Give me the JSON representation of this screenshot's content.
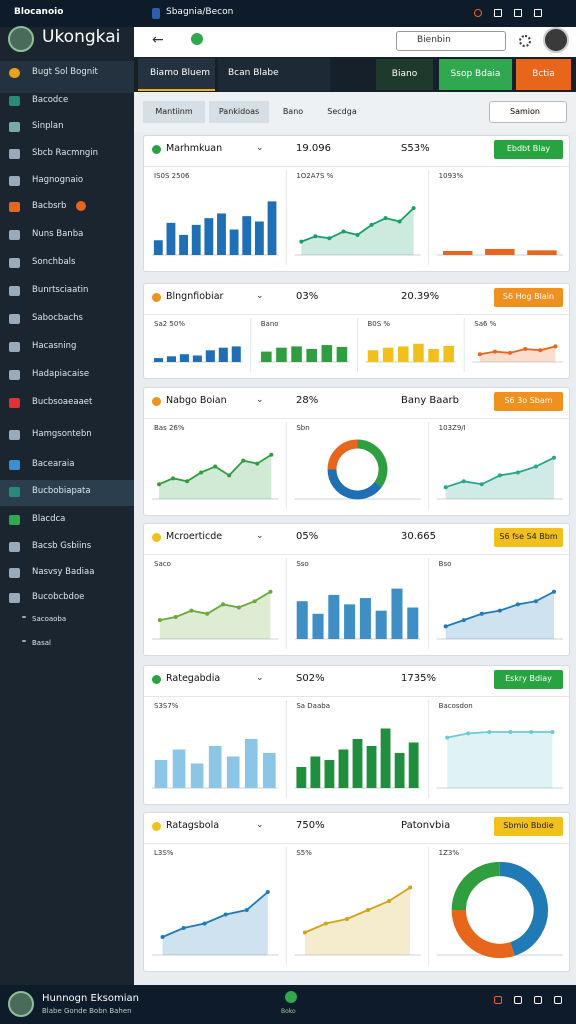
{
  "topbar": {
    "app": "Blocanoio",
    "tab": "Sbagnia/Becon"
  },
  "brand": "Ukongkai",
  "search": "Bienbin",
  "nav": [
    "Biamo Bluem",
    "Bcan Blabe"
  ],
  "tabs": [
    {
      "label": "Biano",
      "color": "#1e3a2c"
    },
    {
      "label": "Ssop Bdaia",
      "color": "#2fa84f"
    },
    {
      "label": "Bctia",
      "color": "#e8661c"
    }
  ],
  "filters": [
    "Mantiinm",
    "Pankidoas",
    "Bano",
    "Secdga"
  ],
  "sort": "Samion",
  "sidebar": {
    "highlighted": 15,
    "items": [
      "Bugt Sol Bognit",
      "Bacodce",
      "Sinplan",
      "Sbcb Racmngin",
      "Hagnognaio",
      "Bacbsrb",
      "Nuns Banba",
      "Sonchbals",
      "Bunrtsciaatin",
      "Sabocbachs",
      "Hacasning",
      "Hadapiacaise",
      "Bucbsoaeaaet",
      "Hamgsontebn",
      "Bacearaia",
      "Bucbobiapata",
      "Blacdca",
      "Bacsb Gsbiins",
      "Nasvsy Badiaa",
      "Bucobcbdoe",
      "Sacoaoba",
      "Basal"
    ]
  },
  "panels": [
    {
      "title": "Marhmkuan",
      "value1": "19.096",
      "value2": "S53%",
      "button": "Ebdbt Blay",
      "color": "#27a33f",
      "charts": [
        {
          "type": "bar",
          "caption": "IS0S 2506",
          "color": "#1f6fb5",
          "ylim": [
            0,
            100
          ],
          "values": [
            22,
            48,
            30,
            45,
            55,
            62,
            38,
            58,
            50,
            80
          ]
        },
        {
          "type": "area",
          "caption": "1O2A7S %",
          "color": "#1a9e6a",
          "ylim": [
            0,
            100
          ],
          "values": [
            20,
            28,
            25,
            35,
            30,
            45,
            55,
            50,
            70
          ]
        },
        {
          "type": "bar",
          "caption": "1093%",
          "color": "#e8661c",
          "ylim": [
            0,
            100
          ],
          "values": [
            6,
            9,
            7
          ]
        }
      ]
    },
    {
      "title": "Blngnfiobiar",
      "value1": "03%",
      "value2": "20.39%",
      "button": "S6 Hog Blain",
      "color": "#f0901e",
      "charts": [
        {
          "type": "bar",
          "caption": "Sa2 50%",
          "color": "#1f6fb5",
          "ylim": [
            0,
            100
          ],
          "values": [
            15,
            22,
            30,
            25,
            45,
            55,
            60
          ]
        },
        {
          "type": "bar",
          "caption": "Bano",
          "color": "#2e9e3e",
          "ylim": [
            0,
            100
          ],
          "values": [
            40,
            55,
            60,
            50,
            65,
            58
          ]
        },
        {
          "type": "bar",
          "caption": "B0S %",
          "color": "#f2c01c",
          "ylim": [
            0,
            100
          ],
          "values": [
            45,
            55,
            60,
            70,
            50,
            62
          ]
        },
        {
          "type": "area",
          "caption": "Sa6 %",
          "color": "#e8661c",
          "ylim": [
            0,
            100
          ],
          "values": [
            30,
            40,
            35,
            50,
            45,
            60
          ]
        }
      ]
    },
    {
      "title": "Nabgo Boian",
      "value1": "28%",
      "value2": "Bany Baarb",
      "button": "S6 3o Sbam",
      "color": "#f0901e",
      "charts": [
        {
          "type": "area",
          "caption": "Bas 26%",
          "color": "#2e9e3e",
          "ylim": [
            0,
            100
          ],
          "values": [
            25,
            35,
            30,
            45,
            55,
            40,
            65,
            60,
            75
          ]
        },
        {
          "type": "donut",
          "caption": "Sbn",
          "colors": [
            "#2e9e3e",
            "#1f6fb5",
            "#e8661c"
          ],
          "values": [
            35,
            40,
            25
          ]
        },
        {
          "type": "area",
          "caption": "103Z9/I",
          "color": "#2aa58e",
          "ylim": [
            0,
            100
          ],
          "values": [
            20,
            30,
            25,
            40,
            45,
            55,
            70
          ]
        }
      ]
    },
    {
      "title": "Mcroerticde",
      "value1": "05%",
      "value2": "30.665",
      "button": "S6 fse S4 Bbm",
      "color": "#f2c01c",
      "charts": [
        {
          "type": "area",
          "caption": "Saco",
          "color": "#6aa83a",
          "ylim": [
            0,
            100
          ],
          "values": [
            30,
            35,
            45,
            40,
            55,
            50,
            60,
            75
          ]
        },
        {
          "type": "bar",
          "caption": "Sso",
          "color": "#3f8fc4",
          "ylim": [
            0,
            100
          ],
          "values": [
            60,
            40,
            70,
            55,
            65,
            45,
            80,
            50
          ]
        },
        {
          "type": "area",
          "caption": "Bso",
          "color": "#1f7ab5",
          "ylim": [
            0,
            100
          ],
          "values": [
            20,
            30,
            40,
            45,
            55,
            60,
            75
          ]
        }
      ]
    },
    {
      "title": "Rategabdia",
      "value1": "S02%",
      "value2": "1735%",
      "button": "Eskry Bdiay",
      "color": "#27a33f",
      "charts": [
        {
          "type": "bar",
          "caption": "S3S7%",
          "color": "#8cc6e6",
          "ylim": [
            0,
            100
          ],
          "values": [
            40,
            55,
            35,
            60,
            45,
            70,
            50
          ]
        },
        {
          "type": "bar",
          "caption": "Sa Daaba",
          "color": "#1f8f3e",
          "ylim": [
            0,
            100
          ],
          "values": [
            30,
            45,
            40,
            55,
            70,
            60,
            85,
            50,
            65
          ]
        },
        {
          "type": "area",
          "caption": "Bacosdon",
          "color": "#6ec9d9",
          "ylim": [
            0,
            100
          ],
          "values": [
            72,
            78,
            80,
            80,
            80,
            80
          ]
        }
      ]
    },
    {
      "title": "Ratagsbola",
      "value1": "750%",
      "value2": "Patonvbia",
      "button": "Sbmio Bbdie",
      "color": "#f2c01c",
      "charts": [
        {
          "type": "area",
          "caption": "L3S%",
          "color": "#1f7ab5",
          "ylim": [
            0,
            100
          ],
          "values": [
            20,
            30,
            35,
            45,
            50,
            70
          ]
        },
        {
          "type": "area",
          "caption": "S5%",
          "color": "#d1a21a",
          "ylim": [
            0,
            100
          ],
          "values": [
            25,
            35,
            40,
            50,
            60,
            75
          ]
        },
        {
          "type": "donut",
          "caption": "1Z3%",
          "colors": [
            "#1f7ab5",
            "#e8661c",
            "#2e9e3e"
          ],
          "values": [
            45,
            30,
            25
          ]
        }
      ]
    }
  ],
  "footer": {
    "name": "Hunnogn Eksomian",
    "sub": "Blabe Gonde Bobn Bahen",
    "action": "Boko"
  }
}
